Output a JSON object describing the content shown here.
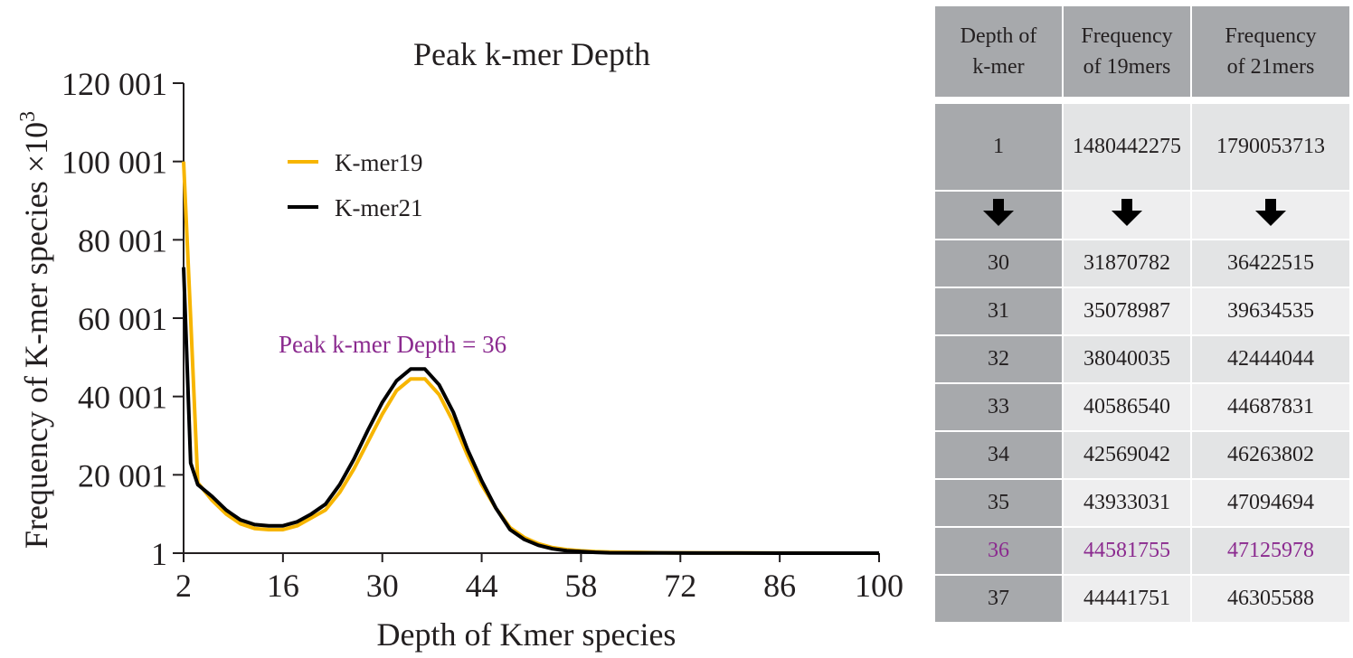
{
  "chart_data": {
    "type": "line",
    "title": "Peak k-mer Depth",
    "xlabel": "Depth of Kmer species",
    "ylabel": "Frequency of K-mer species ×10",
    "ylabel_superscript": "3",
    "xlim": [
      2,
      100
    ],
    "ylim": [
      1,
      120001
    ],
    "x_ticks": [
      "2",
      "16",
      "30",
      "44",
      "58",
      "72",
      "86",
      "100"
    ],
    "y_ticks": [
      "1",
      "20 001",
      "40 001",
      "60 001",
      "80 001",
      "100 001",
      "120 001"
    ],
    "legend": {
      "position": "top-left",
      "entries": [
        "K-mer19",
        "K-mer21"
      ]
    },
    "annotation": "Peak k-mer Depth = 36",
    "grid": false,
    "series": [
      {
        "name": "K-mer19",
        "color": "#f7b500",
        "x": [
          2,
          3,
          4,
          6,
          8,
          10,
          12,
          14,
          16,
          18,
          20,
          22,
          24,
          26,
          28,
          30,
          32,
          34,
          36,
          38,
          40,
          42,
          44,
          46,
          48,
          50,
          52,
          54,
          56,
          58,
          60,
          62,
          66,
          70,
          76,
          80,
          86,
          90,
          96,
          100
        ],
        "y": [
          100001,
          60001,
          18001,
          13501,
          10001,
          7501,
          6301,
          6001,
          6001,
          7001,
          9001,
          11001,
          15501,
          21501,
          28501,
          35501,
          41501,
          44501,
          44501,
          40501,
          33501,
          25001,
          17501,
          11501,
          6501,
          4001,
          2401,
          1401,
          901,
          601,
          401,
          301,
          201,
          101,
          61,
          41,
          31,
          21,
          11,
          1
        ]
      },
      {
        "name": "K-mer21",
        "color": "#000000",
        "x": [
          2,
          3,
          4,
          6,
          8,
          10,
          12,
          14,
          16,
          18,
          20,
          22,
          24,
          26,
          28,
          30,
          32,
          34,
          36,
          38,
          40,
          42,
          44,
          46,
          48,
          50,
          52,
          54,
          56,
          58,
          60,
          62,
          66,
          70,
          76,
          80,
          86,
          90,
          96,
          100
        ],
        "y": [
          73001,
          23001,
          17501,
          14501,
          11001,
          8501,
          7301,
          7001,
          7001,
          8001,
          10001,
          12501,
          17501,
          24001,
          31501,
          38501,
          44001,
          47001,
          47001,
          43001,
          36001,
          26501,
          18501,
          11501,
          6001,
          3501,
          2001,
          1101,
          601,
          401,
          201,
          101,
          61,
          41,
          31,
          21,
          11,
          11,
          1,
          1
        ]
      }
    ]
  },
  "table": {
    "headers": [
      "Depth of\nk-mer",
      "Frequency\nof 19mers",
      "Frequency\nof 21mers"
    ],
    "header_line1": [
      "Depth of",
      "Frequency",
      "Frequency"
    ],
    "header_line2": [
      "k-mer",
      "of 19mers",
      "of 21mers"
    ],
    "first_row": {
      "depth": "1",
      "f19": "1480442275",
      "f21": "1790053713"
    },
    "rows": [
      {
        "depth": "30",
        "f19": "31870782",
        "f21": "36422515"
      },
      {
        "depth": "31",
        "f19": "35078987",
        "f21": "39634535"
      },
      {
        "depth": "32",
        "f19": "38040035",
        "f21": "42444044"
      },
      {
        "depth": "33",
        "f19": "40586540",
        "f21": "44687831"
      },
      {
        "depth": "34",
        "f19": "42569042",
        "f21": "46263802"
      },
      {
        "depth": "35",
        "f19": "43933031",
        "f21": "47094694"
      },
      {
        "depth": "36",
        "f19": "44581755",
        "f21": "47125978"
      },
      {
        "depth": "37",
        "f19": "44441751",
        "f21": "46305588"
      }
    ],
    "highlight_color": "#8b2a8f",
    "arrow_icon": "arrow-down-icon"
  }
}
